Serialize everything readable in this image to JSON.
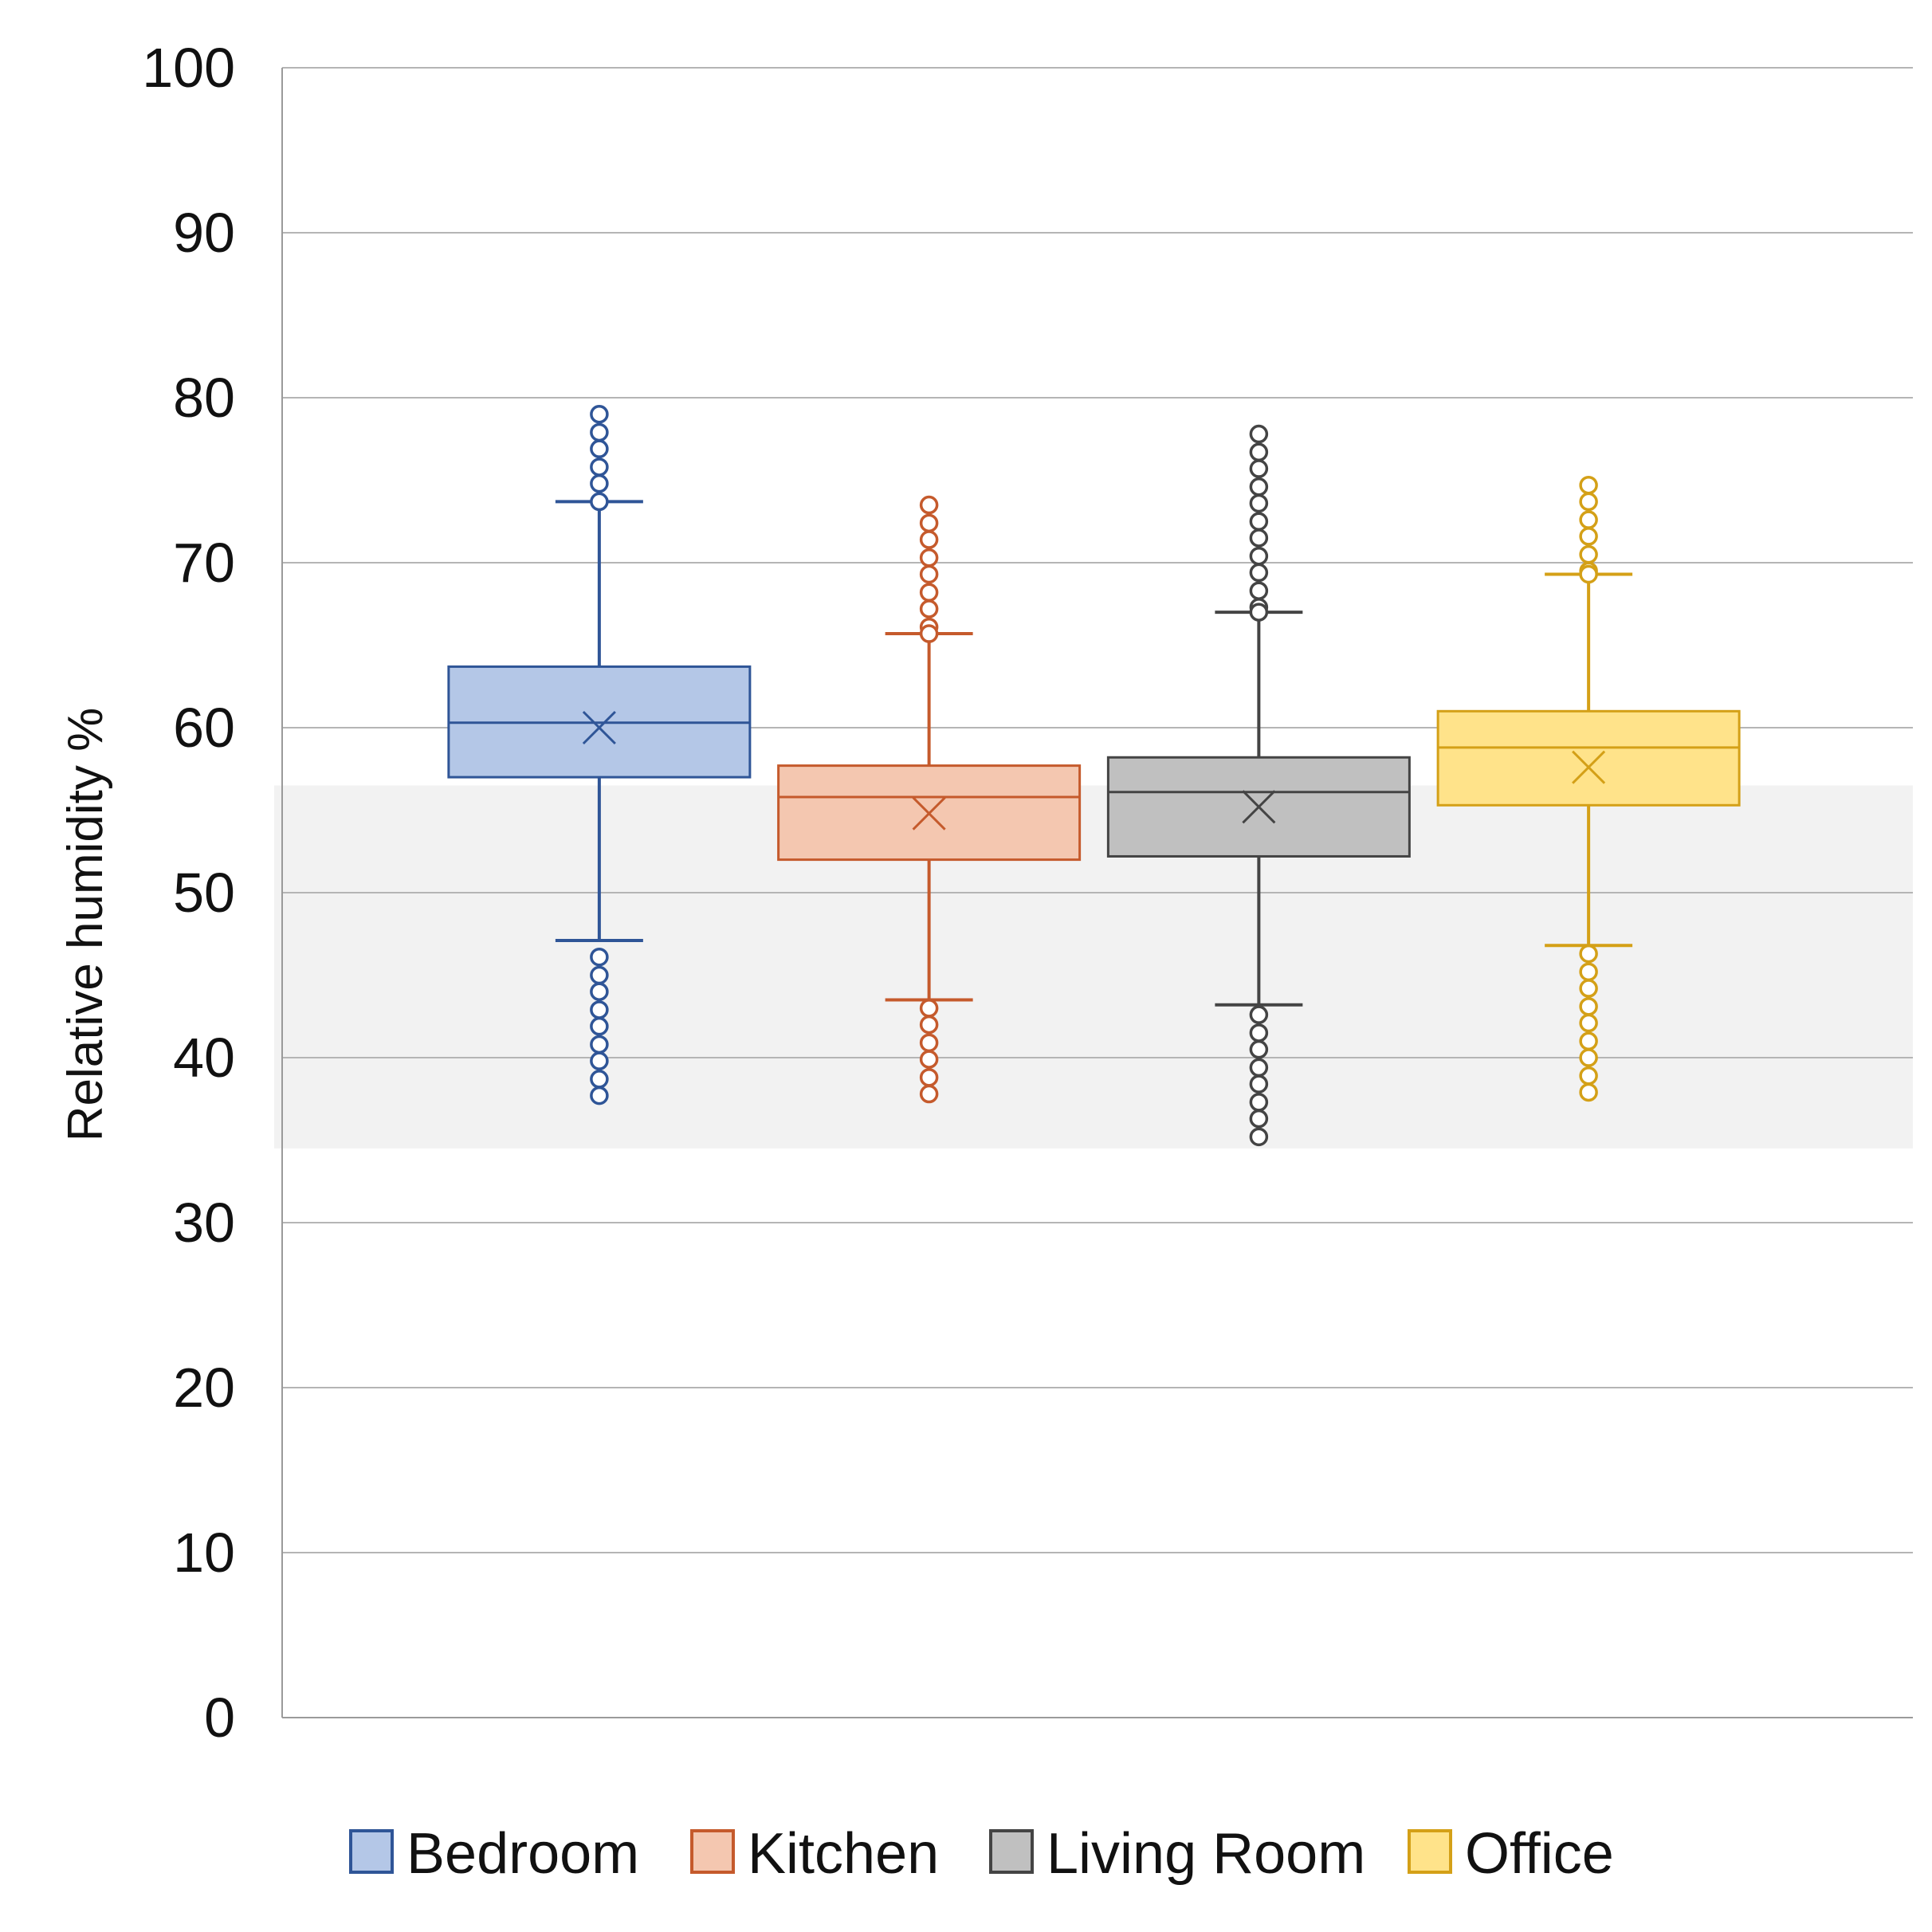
{
  "chart_data": {
    "type": "box",
    "ylabel": "Relative humidity %",
    "xlabel": "",
    "ylim": [
      0,
      100
    ],
    "yticks": [
      "0",
      "10",
      "20",
      "30",
      "40",
      "50",
      "60",
      "70",
      "80",
      "90",
      "100"
    ],
    "grid": true,
    "shaded_band": [
      34.5,
      56.5
    ],
    "legend": {
      "placement": "bottom",
      "entries": [
        "Bedroom",
        "Kitchen",
        "Living Room",
        "Office"
      ]
    },
    "series": [
      {
        "name": "Bedroom",
        "q1": 57,
        "median": 60.3,
        "q3": 63.7,
        "mean": 60,
        "whisker_low": 47.1,
        "whisker_high": 73.7,
        "outliers": [
          79,
          77.9,
          76.9,
          75.8,
          74.8,
          73.7,
          46.1,
          45,
          44,
          42.9,
          41.9,
          40.8,
          39.8,
          38.7,
          37.7
        ],
        "fill": "#b4c7e7",
        "stroke": "#2f5597"
      },
      {
        "name": "Kitchen",
        "q1": 52,
        "median": 55.8,
        "q3": 57.7,
        "mean": 54.8,
        "whisker_low": 43.5,
        "whisker_high": 65.7,
        "outliers": [
          73.5,
          72.4,
          71.4,
          70.3,
          69.3,
          68.2,
          67.2,
          66.1,
          65.7,
          43,
          42,
          40.9,
          39.9,
          38.8,
          37.8
        ],
        "fill": "#f4c7b0",
        "stroke": "#c55a2c"
      },
      {
        "name": "Living Room",
        "q1": 52.2,
        "median": 56.1,
        "q3": 58.2,
        "mean": 55.2,
        "whisker_low": 43.2,
        "whisker_high": 67,
        "outliers": [
          77.8,
          76.7,
          75.7,
          74.6,
          73.6,
          72.5,
          71.5,
          70.4,
          69.4,
          68.3,
          67.3,
          67,
          42.6,
          41.5,
          40.5,
          39.4,
          38.4,
          37.3,
          36.3,
          35.2
        ],
        "fill": "#c0c0c0",
        "stroke": "#444444"
      },
      {
        "name": "Office",
        "q1": 55.3,
        "median": 58.8,
        "q3": 61,
        "mean": 57.6,
        "whisker_low": 46.8,
        "whisker_high": 69.3,
        "outliers": [
          74.7,
          73.7,
          72.6,
          71.6,
          70.5,
          69.5,
          69.3,
          46.3,
          45.2,
          44.2,
          43.1,
          42.1,
          41,
          40,
          38.9,
          37.9
        ],
        "fill": "#ffe38a",
        "stroke": "#d4a017"
      }
    ]
  }
}
